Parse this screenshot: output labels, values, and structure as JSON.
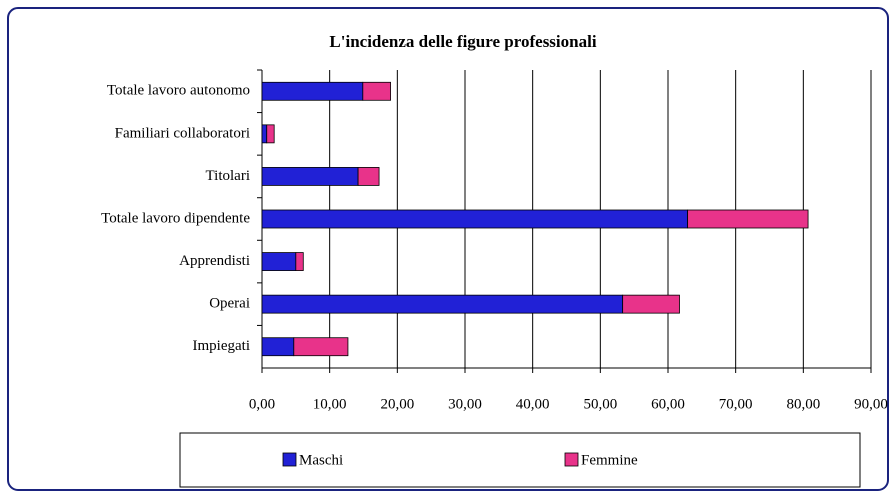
{
  "chart_data": {
    "type": "bar",
    "orientation": "horizontal",
    "stacked": true,
    "title": "L'incidenza delle figure professionali",
    "categories": [
      "Totale lavoro autonomo",
      "Familiari collaboratori",
      "Titolari",
      "Totale lavoro dipendente",
      "Apprendisti",
      "Operai",
      "Impiegati"
    ],
    "series": [
      {
        "name": "Maschi",
        "color": "#2121d6",
        "values": [
          14.9,
          0.7,
          14.2,
          62.9,
          5.0,
          53.3,
          4.7
        ]
      },
      {
        "name": "Femmine",
        "color": "#e8338a",
        "values": [
          4.1,
          1.1,
          3.1,
          17.8,
          1.1,
          8.4,
          8.0
        ]
      }
    ],
    "xlim": [
      0,
      90
    ],
    "xticks": [
      {
        "value": 0,
        "label": "0,00"
      },
      {
        "value": 10,
        "label": "10,00"
      },
      {
        "value": 20,
        "label": "20,00"
      },
      {
        "value": 30,
        "label": "30,00"
      },
      {
        "value": 40,
        "label": "40,00"
      },
      {
        "value": 50,
        "label": "50,00"
      },
      {
        "value": 60,
        "label": "60,00"
      },
      {
        "value": 70,
        "label": "70,00"
      },
      {
        "value": 80,
        "label": "80,00"
      },
      {
        "value": 90,
        "label": "90,00"
      }
    ],
    "grid": true,
    "legend": "bottom"
  }
}
